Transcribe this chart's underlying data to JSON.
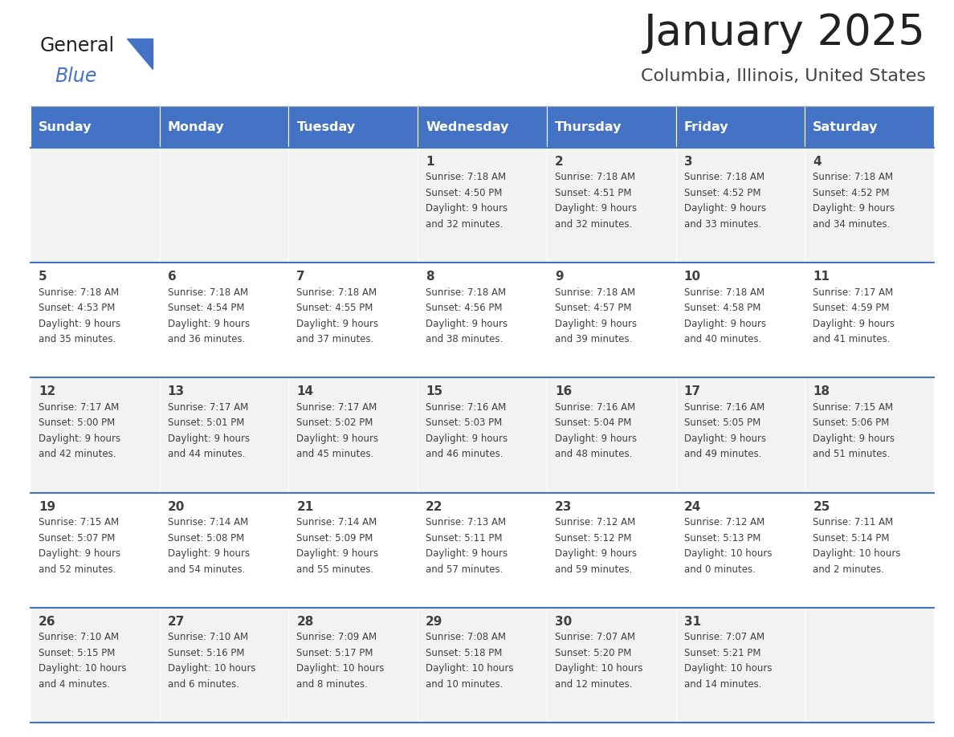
{
  "title": "January 2025",
  "subtitle": "Columbia, Illinois, United States",
  "header_bg_color": "#4472C4",
  "header_text_color": "#FFFFFF",
  "cell_bg_even": "#F2F2F2",
  "cell_bg_odd": "#FFFFFF",
  "divider_color": "#4472C4",
  "text_color": "#404040",
  "days_of_week": [
    "Sunday",
    "Monday",
    "Tuesday",
    "Wednesday",
    "Thursday",
    "Friday",
    "Saturday"
  ],
  "calendar_data": [
    [
      {
        "day": "",
        "sunrise": "",
        "sunset": "",
        "daylight_h": "",
        "daylight_m": ""
      },
      {
        "day": "",
        "sunrise": "",
        "sunset": "",
        "daylight_h": "",
        "daylight_m": ""
      },
      {
        "day": "",
        "sunrise": "",
        "sunset": "",
        "daylight_h": "",
        "daylight_m": ""
      },
      {
        "day": "1",
        "sunrise": "7:18 AM",
        "sunset": "4:50 PM",
        "daylight_h": "9",
        "daylight_m": "32"
      },
      {
        "day": "2",
        "sunrise": "7:18 AM",
        "sunset": "4:51 PM",
        "daylight_h": "9",
        "daylight_m": "32"
      },
      {
        "day": "3",
        "sunrise": "7:18 AM",
        "sunset": "4:52 PM",
        "daylight_h": "9",
        "daylight_m": "33"
      },
      {
        "day": "4",
        "sunrise": "7:18 AM",
        "sunset": "4:52 PM",
        "daylight_h": "9",
        "daylight_m": "34"
      }
    ],
    [
      {
        "day": "5",
        "sunrise": "7:18 AM",
        "sunset": "4:53 PM",
        "daylight_h": "9",
        "daylight_m": "35"
      },
      {
        "day": "6",
        "sunrise": "7:18 AM",
        "sunset": "4:54 PM",
        "daylight_h": "9",
        "daylight_m": "36"
      },
      {
        "day": "7",
        "sunrise": "7:18 AM",
        "sunset": "4:55 PM",
        "daylight_h": "9",
        "daylight_m": "37"
      },
      {
        "day": "8",
        "sunrise": "7:18 AM",
        "sunset": "4:56 PM",
        "daylight_h": "9",
        "daylight_m": "38"
      },
      {
        "day": "9",
        "sunrise": "7:18 AM",
        "sunset": "4:57 PM",
        "daylight_h": "9",
        "daylight_m": "39"
      },
      {
        "day": "10",
        "sunrise": "7:18 AM",
        "sunset": "4:58 PM",
        "daylight_h": "9",
        "daylight_m": "40"
      },
      {
        "day": "11",
        "sunrise": "7:17 AM",
        "sunset": "4:59 PM",
        "daylight_h": "9",
        "daylight_m": "41"
      }
    ],
    [
      {
        "day": "12",
        "sunrise": "7:17 AM",
        "sunset": "5:00 PM",
        "daylight_h": "9",
        "daylight_m": "42"
      },
      {
        "day": "13",
        "sunrise": "7:17 AM",
        "sunset": "5:01 PM",
        "daylight_h": "9",
        "daylight_m": "44"
      },
      {
        "day": "14",
        "sunrise": "7:17 AM",
        "sunset": "5:02 PM",
        "daylight_h": "9",
        "daylight_m": "45"
      },
      {
        "day": "15",
        "sunrise": "7:16 AM",
        "sunset": "5:03 PM",
        "daylight_h": "9",
        "daylight_m": "46"
      },
      {
        "day": "16",
        "sunrise": "7:16 AM",
        "sunset": "5:04 PM",
        "daylight_h": "9",
        "daylight_m": "48"
      },
      {
        "day": "17",
        "sunrise": "7:16 AM",
        "sunset": "5:05 PM",
        "daylight_h": "9",
        "daylight_m": "49"
      },
      {
        "day": "18",
        "sunrise": "7:15 AM",
        "sunset": "5:06 PM",
        "daylight_h": "9",
        "daylight_m": "51"
      }
    ],
    [
      {
        "day": "19",
        "sunrise": "7:15 AM",
        "sunset": "5:07 PM",
        "daylight_h": "9",
        "daylight_m": "52"
      },
      {
        "day": "20",
        "sunrise": "7:14 AM",
        "sunset": "5:08 PM",
        "daylight_h": "9",
        "daylight_m": "54"
      },
      {
        "day": "21",
        "sunrise": "7:14 AM",
        "sunset": "5:09 PM",
        "daylight_h": "9",
        "daylight_m": "55"
      },
      {
        "day": "22",
        "sunrise": "7:13 AM",
        "sunset": "5:11 PM",
        "daylight_h": "9",
        "daylight_m": "57"
      },
      {
        "day": "23",
        "sunrise": "7:12 AM",
        "sunset": "5:12 PM",
        "daylight_h": "9",
        "daylight_m": "59"
      },
      {
        "day": "24",
        "sunrise": "7:12 AM",
        "sunset": "5:13 PM",
        "daylight_h": "10",
        "daylight_m": "0"
      },
      {
        "day": "25",
        "sunrise": "7:11 AM",
        "sunset": "5:14 PM",
        "daylight_h": "10",
        "daylight_m": "2"
      }
    ],
    [
      {
        "day": "26",
        "sunrise": "7:10 AM",
        "sunset": "5:15 PM",
        "daylight_h": "10",
        "daylight_m": "4"
      },
      {
        "day": "27",
        "sunrise": "7:10 AM",
        "sunset": "5:16 PM",
        "daylight_h": "10",
        "daylight_m": "6"
      },
      {
        "day": "28",
        "sunrise": "7:09 AM",
        "sunset": "5:17 PM",
        "daylight_h": "10",
        "daylight_m": "8"
      },
      {
        "day": "29",
        "sunrise": "7:08 AM",
        "sunset": "5:18 PM",
        "daylight_h": "10",
        "daylight_m": "10"
      },
      {
        "day": "30",
        "sunrise": "7:07 AM",
        "sunset": "5:20 PM",
        "daylight_h": "10",
        "daylight_m": "12"
      },
      {
        "day": "31",
        "sunrise": "7:07 AM",
        "sunset": "5:21 PM",
        "daylight_h": "10",
        "daylight_m": "14"
      },
      {
        "day": "",
        "sunrise": "",
        "sunset": "",
        "daylight_h": "",
        "daylight_m": ""
      }
    ]
  ],
  "figwidth": 11.88,
  "figheight": 9.18,
  "dpi": 100
}
